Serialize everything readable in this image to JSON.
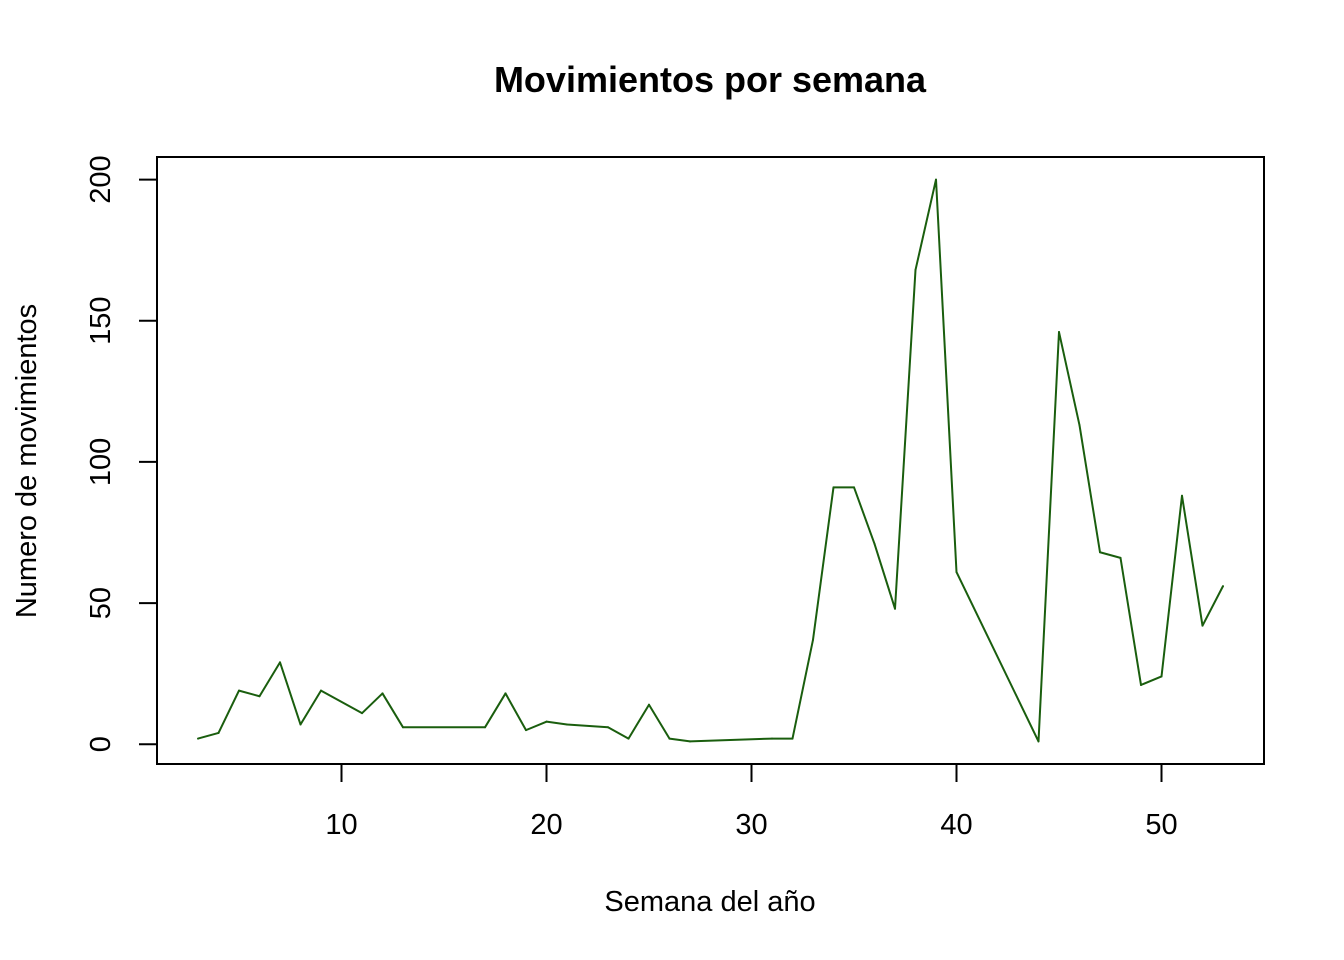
{
  "chart_data": {
    "type": "line",
    "title": "Movimientos por semana",
    "xlabel": "Semana del año",
    "ylabel": "Numero de movimientos",
    "xlim": [
      1,
      55
    ],
    "ylim": [
      -7,
      208
    ],
    "xticks": [
      10,
      20,
      30,
      40,
      50
    ],
    "yticks": [
      0,
      50,
      100,
      150,
      200
    ],
    "xtick_labels": [
      "10",
      "20",
      "30",
      "40",
      "50"
    ],
    "ytick_labels": [
      "0",
      "50",
      "100",
      "150",
      "200"
    ],
    "grid": false,
    "line_color": "#1a5e0e",
    "x": [
      3,
      4,
      5,
      6,
      7,
      8,
      9,
      11,
      12,
      13,
      17,
      18,
      19,
      20,
      21,
      23,
      24,
      25,
      26,
      27,
      31,
      32,
      33,
      34,
      35,
      36,
      37,
      38,
      39,
      40,
      44,
      45,
      46,
      47,
      48,
      49,
      50,
      51,
      52,
      53
    ],
    "y": [
      2,
      4,
      19,
      17,
      29,
      7,
      19,
      11,
      18,
      6,
      6,
      18,
      5,
      8,
      7,
      6,
      2,
      14,
      2,
      1,
      2,
      2,
      37,
      91,
      91,
      71,
      48,
      168,
      200,
      61,
      1,
      146,
      113,
      68,
      66,
      21,
      24,
      88,
      42,
      56
    ]
  }
}
